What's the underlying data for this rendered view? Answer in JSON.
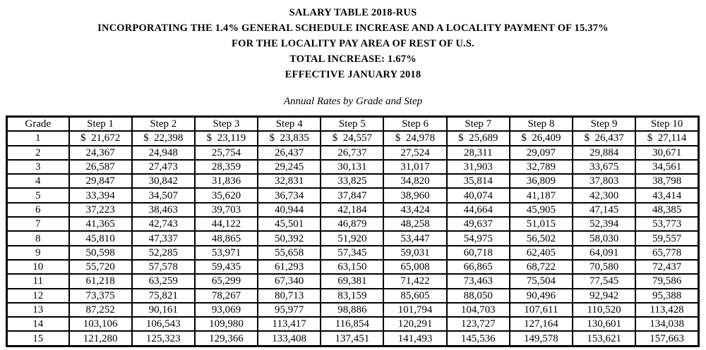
{
  "header": {
    "title_lines": [
      "SALARY TABLE 2018-RUS",
      "INCORPORATING THE 1.4% GENERAL SCHEDULE INCREASE AND A LOCALITY PAYMENT OF 15.37%",
      "FOR THE LOCALITY PAY AREA OF REST OF U.S.",
      "TOTAL INCREASE: 1.67%",
      "EFFECTIVE JANUARY 2018"
    ],
    "subtitle": "Annual Rates by Grade and Step"
  },
  "table": {
    "columns": [
      "Grade",
      "Step 1",
      "Step 2",
      "Step 3",
      "Step 4",
      "Step 5",
      "Step 6",
      "Step 7",
      "Step 8",
      "Step 9",
      "Step 10"
    ],
    "rows": [
      {
        "grade": "1",
        "values": [
          "$  21,672",
          "$  22,398",
          "$  23,119",
          "$  23,835",
          "$  24,557",
          "$  24,978",
          "$  25,689",
          "$  26,409",
          "$  26,437",
          "$  27,114"
        ]
      },
      {
        "grade": "2",
        "values": [
          "24,367",
          "24,948",
          "25,754",
          "26,437",
          "26,737",
          "27,524",
          "28,311",
          "29,097",
          "29,884",
          "30,671"
        ]
      },
      {
        "grade": "3",
        "values": [
          "26,587",
          "27,473",
          "28,359",
          "29,245",
          "30,131",
          "31,017",
          "31,903",
          "32,789",
          "33,675",
          "34,561"
        ]
      },
      {
        "grade": "4",
        "values": [
          "29,847",
          "30,842",
          "31,836",
          "32,831",
          "33,825",
          "34,820",
          "35,814",
          "36,809",
          "37,803",
          "38,798"
        ]
      },
      {
        "grade": "5",
        "values": [
          "33,394",
          "34,507",
          "35,620",
          "36,734",
          "37,847",
          "38,960",
          "40,074",
          "41,187",
          "42,300",
          "43,414"
        ]
      },
      {
        "grade": "6",
        "values": [
          "37,223",
          "38,463",
          "39,703",
          "40,944",
          "42,184",
          "43,424",
          "44,664",
          "45,905",
          "47,145",
          "48,385"
        ]
      },
      {
        "grade": "7",
        "values": [
          "41,365",
          "42,743",
          "44,122",
          "45,501",
          "46,879",
          "48,258",
          "49,637",
          "51,015",
          "52,394",
          "53,773"
        ]
      },
      {
        "grade": "8",
        "values": [
          "45,810",
          "47,337",
          "48,865",
          "50,392",
          "51,920",
          "53,447",
          "54,975",
          "56,502",
          "58,030",
          "59,557"
        ]
      },
      {
        "grade": "9",
        "values": [
          "50,598",
          "52,285",
          "53,971",
          "55,658",
          "57,345",
          "59,031",
          "60,718",
          "62,405",
          "64,091",
          "65,778"
        ]
      },
      {
        "grade": "10",
        "values": [
          "55,720",
          "57,578",
          "59,435",
          "61,293",
          "63,150",
          "65,008",
          "66,865",
          "68,722",
          "70,580",
          "72,437"
        ]
      },
      {
        "grade": "11",
        "values": [
          "61,218",
          "63,259",
          "65,299",
          "67,340",
          "69,381",
          "71,422",
          "73,463",
          "75,504",
          "77,545",
          "79,586"
        ]
      },
      {
        "grade": "12",
        "values": [
          "73,375",
          "75,821",
          "78,267",
          "80,713",
          "83,159",
          "85,605",
          "88,050",
          "90,496",
          "92,942",
          "95,388"
        ]
      },
      {
        "grade": "13",
        "values": [
          "87,252",
          "90,161",
          "93,069",
          "95,977",
          "98,886",
          "101,794",
          "104,703",
          "107,611",
          "110,520",
          "113,428"
        ]
      },
      {
        "grade": "14",
        "values": [
          "103,106",
          "106,543",
          "109,980",
          "113,417",
          "116,854",
          "120,291",
          "123,727",
          "127,164",
          "130,601",
          "134,038"
        ]
      },
      {
        "grade": "15",
        "values": [
          "121,280",
          "125,323",
          "129,366",
          "133,408",
          "137,451",
          "141,493",
          "145,536",
          "149,578",
          "153,621",
          "157,663"
        ]
      }
    ]
  },
  "colors": {
    "text": "#000000",
    "background": "#ffffff",
    "border": "#000000"
  }
}
